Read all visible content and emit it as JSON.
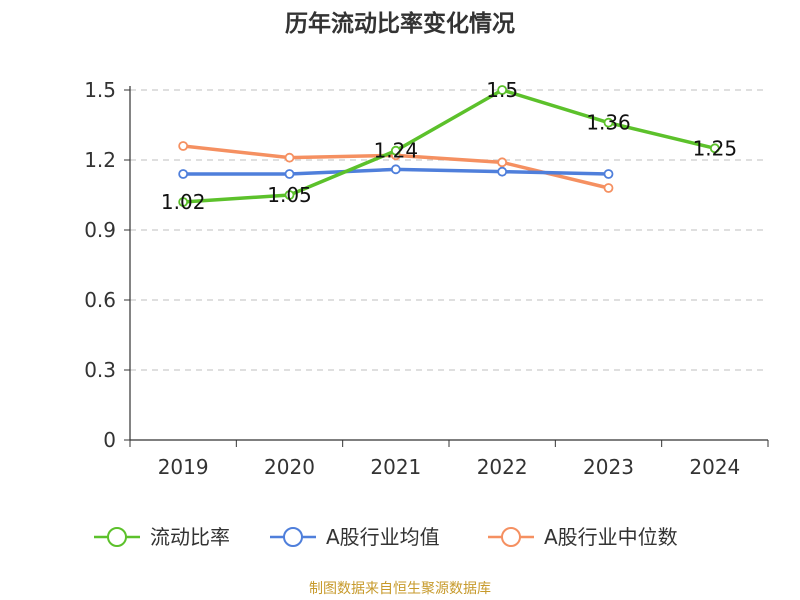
{
  "title": "历年流动比率变化情况",
  "source": "制图数据来自恒生聚源数据库",
  "chart_data": {
    "type": "line",
    "categories": [
      "2019",
      "2020",
      "2021",
      "2022",
      "2023",
      "2024"
    ],
    "ylim": [
      0,
      1.5
    ],
    "yticks": [
      "0",
      "0.3",
      "0.6",
      "0.9",
      "1.2",
      "1.5"
    ],
    "grid": true,
    "legend_position": "bottom",
    "series": [
      {
        "name": "流动比率",
        "color": "#5cc12b",
        "values": [
          1.02,
          1.05,
          1.24,
          1.5,
          1.36,
          1.25
        ],
        "labels": [
          "1.02",
          "1.05",
          "1.24",
          "1.5",
          "1.36",
          "1.25"
        ]
      },
      {
        "name": "A股行业均值",
        "color": "#4f7fdb",
        "values": [
          1.14,
          1.14,
          1.16,
          1.15,
          1.14,
          null
        ]
      },
      {
        "name": "A股行业中位数",
        "color": "#f59061",
        "values": [
          1.26,
          1.21,
          1.22,
          1.19,
          1.08,
          null
        ]
      }
    ]
  }
}
